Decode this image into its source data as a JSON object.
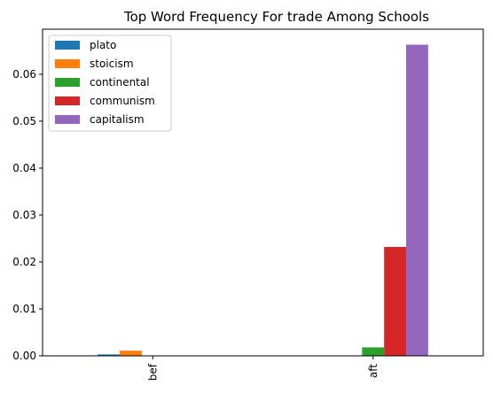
{
  "chart_data": {
    "type": "bar",
    "title": "Top Word Frequency For trade Among Schools",
    "xlabel": "",
    "ylabel": "",
    "categories": [
      "bef",
      "aft"
    ],
    "series": [
      {
        "name": "plato",
        "color": "#1f77b4",
        "values": [
          0.0003,
          0.0
        ]
      },
      {
        "name": "stoicism",
        "color": "#ff7f0e",
        "values": [
          0.0011,
          0.0
        ]
      },
      {
        "name": "continental",
        "color": "#2ca02c",
        "values": [
          0.0,
          0.0018
        ]
      },
      {
        "name": "communism",
        "color": "#d62728",
        "values": [
          0.0,
          0.0232
        ]
      },
      {
        "name": "capitalism",
        "color": "#9467bd",
        "values": [
          0.0,
          0.0663
        ]
      }
    ],
    "ylim": [
      0,
      0.0696
    ],
    "yticks": [
      0.0,
      0.01,
      0.02,
      0.03,
      0.04,
      0.05,
      0.06
    ],
    "ytick_labels": [
      "0.00",
      "0.01",
      "0.02",
      "0.03",
      "0.04",
      "0.05",
      "0.06"
    ],
    "grid": false,
    "legend_position": "upper-left"
  }
}
